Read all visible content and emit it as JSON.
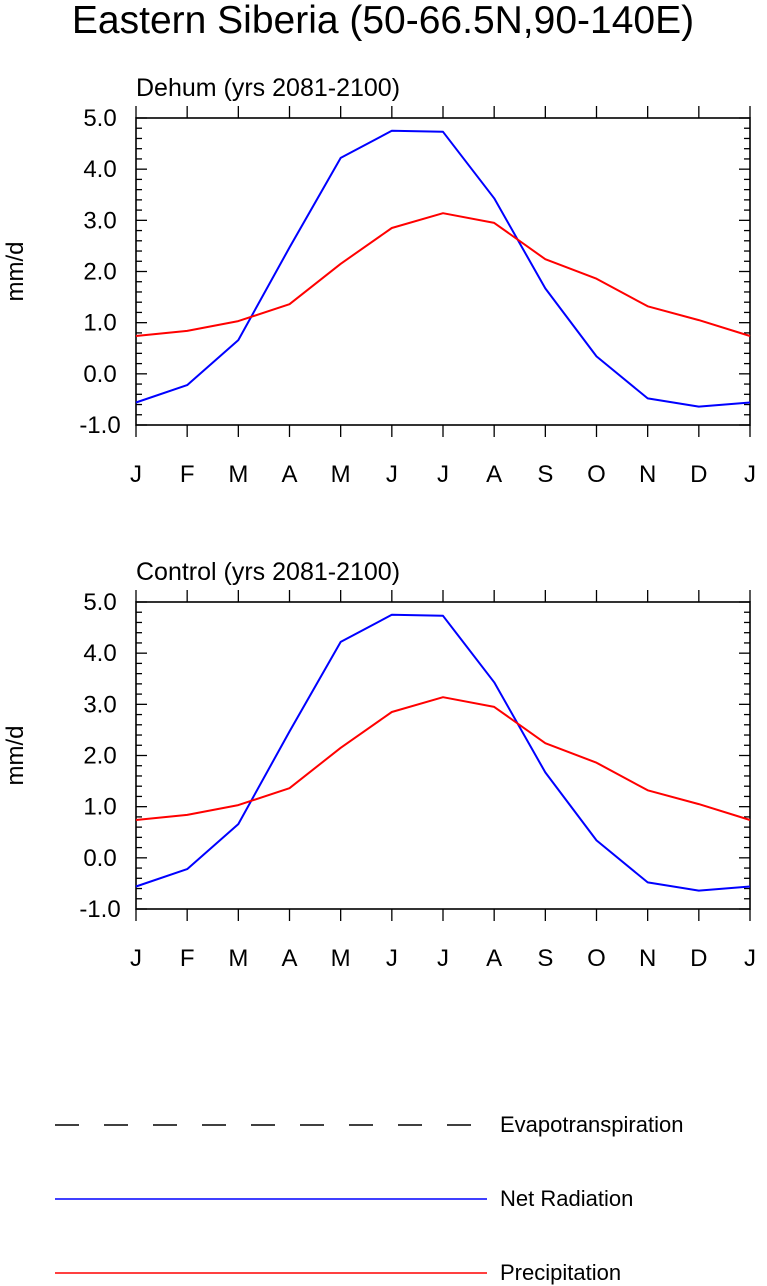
{
  "figure": {
    "title": "Eastern Siberia (50-66.5N,90-140E)"
  },
  "legend": [
    {
      "label": "Evapotranspiration",
      "color": "#000000",
      "style": "dashed"
    },
    {
      "label": "Net Radiation",
      "color": "#0000ff",
      "style": "solid"
    },
    {
      "label": "Precipitation",
      "color": "#ff0000",
      "style": "solid"
    }
  ],
  "chart_data": [
    {
      "type": "line",
      "title": "Dehum (yrs 2081-2100)",
      "xlabel": "",
      "ylabel": "mm/d",
      "categories": [
        "J",
        "F",
        "M",
        "A",
        "M",
        "J",
        "J",
        "A",
        "S",
        "O",
        "N",
        "D",
        "J"
      ],
      "ylim": [
        -1.0,
        5.0
      ],
      "yticks": [
        "-1.0",
        "0.0",
        "1.0",
        "2.0",
        "3.0",
        "4.0",
        "5.0"
      ],
      "grid": false,
      "legend_position": "bottom",
      "series": [
        {
          "name": "Net Radiation",
          "color": "#0000ff",
          "values": [
            -0.56,
            -0.22,
            0.66,
            2.47,
            4.22,
            4.75,
            4.73,
            3.43,
            1.67,
            0.34,
            -0.48,
            -0.64,
            -0.56
          ]
        },
        {
          "name": "Precipitation",
          "color": "#ff0000",
          "values": [
            0.74,
            0.84,
            1.03,
            1.36,
            2.15,
            2.85,
            3.14,
            2.95,
            2.24,
            1.86,
            1.32,
            1.05,
            0.74
          ]
        }
      ]
    },
    {
      "type": "line",
      "title": "Control (yrs 2081-2100)",
      "xlabel": "",
      "ylabel": "mm/d",
      "categories": [
        "J",
        "F",
        "M",
        "A",
        "M",
        "J",
        "J",
        "A",
        "S",
        "O",
        "N",
        "D",
        "J"
      ],
      "ylim": [
        -1.0,
        5.0
      ],
      "yticks": [
        "-1.0",
        "0.0",
        "1.0",
        "2.0",
        "3.0",
        "4.0",
        "5.0"
      ],
      "grid": false,
      "legend_position": "bottom",
      "series": [
        {
          "name": "Net Radiation",
          "color": "#0000ff",
          "values": [
            -0.56,
            -0.22,
            0.66,
            2.47,
            4.22,
            4.75,
            4.73,
            3.43,
            1.67,
            0.34,
            -0.48,
            -0.64,
            -0.56
          ]
        },
        {
          "name": "Precipitation",
          "color": "#ff0000",
          "values": [
            0.74,
            0.84,
            1.03,
            1.36,
            2.15,
            2.85,
            3.14,
            2.95,
            2.24,
            1.86,
            1.32,
            1.05,
            0.74
          ]
        }
      ]
    }
  ]
}
